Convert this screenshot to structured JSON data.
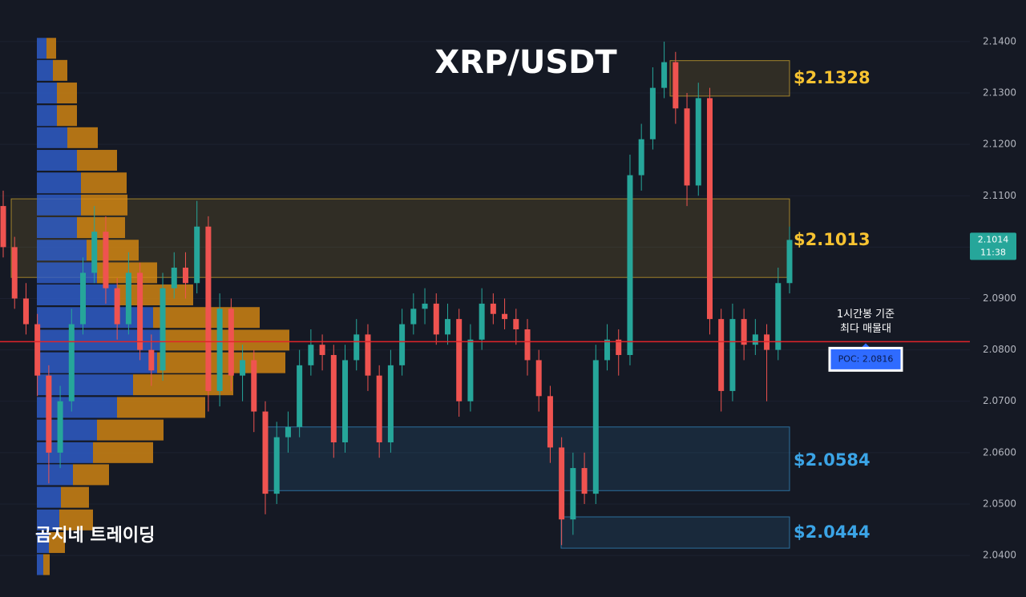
{
  "chart_data": {
    "type": "candlestick",
    "title": "XRP/USDT",
    "watermark": "곰지네 트레이딩",
    "up_color": "#26a69a",
    "down_color": "#ef5350",
    "ylim": [
      2.0319,
      2.1481
    ],
    "yticks": [
      {
        "value": 2.04,
        "label": "2.0400"
      },
      {
        "value": 2.05,
        "label": "2.0500"
      },
      {
        "value": 2.06,
        "label": "2.0600"
      },
      {
        "value": 2.07,
        "label": "2.0700"
      },
      {
        "value": 2.08,
        "label": "2.0800"
      },
      {
        "value": 2.09,
        "label": "2.0900"
      },
      {
        "value": 2.1,
        "label": "2.1000"
      },
      {
        "value": 2.11,
        "label": "2.1100"
      },
      {
        "value": 2.12,
        "label": "2.1200"
      },
      {
        "value": 2.13,
        "label": "2.1300"
      },
      {
        "value": 2.14,
        "label": "2.1400"
      }
    ],
    "ohlc": [
      [
        2.108,
        2.111,
        2.098,
        2.1
      ],
      [
        2.1,
        2.102,
        2.088,
        2.09
      ],
      [
        2.09,
        2.093,
        2.083,
        2.085
      ],
      [
        2.085,
        2.087,
        2.071,
        2.075
      ],
      [
        2.075,
        2.077,
        2.054,
        2.06
      ],
      [
        2.06,
        2.073,
        2.057,
        2.07
      ],
      [
        2.07,
        2.088,
        2.068,
        2.085
      ],
      [
        2.085,
        2.098,
        2.083,
        2.095
      ],
      [
        2.095,
        2.108,
        2.093,
        2.103
      ],
      [
        2.103,
        2.106,
        2.089,
        2.092
      ],
      [
        2.092,
        2.094,
        2.082,
        2.085
      ],
      [
        2.085,
        2.099,
        2.083,
        2.095
      ],
      [
        2.095,
        2.097,
        2.078,
        2.08
      ],
      [
        2.08,
        2.083,
        2.073,
        2.076
      ],
      [
        2.076,
        2.095,
        2.074,
        2.092
      ],
      [
        2.092,
        2.099,
        2.09,
        2.096
      ],
      [
        2.096,
        2.099,
        2.09,
        2.093
      ],
      [
        2.093,
        2.109,
        2.091,
        2.104
      ],
      [
        2.104,
        2.106,
        2.068,
        2.072
      ],
      [
        2.072,
        2.091,
        2.069,
        2.088
      ],
      [
        2.088,
        2.09,
        2.072,
        2.075
      ],
      [
        2.075,
        2.081,
        2.07,
        2.078
      ],
      [
        2.078,
        2.08,
        2.064,
        2.068
      ],
      [
        2.068,
        2.07,
        2.048,
        2.052
      ],
      [
        2.052,
        2.066,
        2.05,
        2.063
      ],
      [
        2.063,
        2.068,
        2.06,
        2.065
      ],
      [
        2.065,
        2.08,
        2.063,
        2.077
      ],
      [
        2.077,
        2.084,
        2.075,
        2.081
      ],
      [
        2.081,
        2.083,
        2.076,
        2.079
      ],
      [
        2.079,
        2.081,
        2.059,
        2.062
      ],
      [
        2.062,
        2.081,
        2.06,
        2.078
      ],
      [
        2.078,
        2.086,
        2.076,
        2.083
      ],
      [
        2.083,
        2.085,
        2.072,
        2.075
      ],
      [
        2.075,
        2.077,
        2.059,
        2.062
      ],
      [
        2.062,
        2.08,
        2.06,
        2.077
      ],
      [
        2.077,
        2.088,
        2.075,
        2.085
      ],
      [
        2.085,
        2.091,
        2.083,
        2.088
      ],
      [
        2.088,
        2.092,
        2.085,
        2.089
      ],
      [
        2.089,
        2.091,
        2.081,
        2.083
      ],
      [
        2.083,
        2.089,
        2.081,
        2.086
      ],
      [
        2.086,
        2.088,
        2.067,
        2.07
      ],
      [
        2.07,
        2.085,
        2.068,
        2.082
      ],
      [
        2.082,
        2.092,
        2.08,
        2.089
      ],
      [
        2.089,
        2.091,
        2.085,
        2.087
      ],
      [
        2.087,
        2.09,
        2.084,
        2.086
      ],
      [
        2.086,
        2.088,
        2.081,
        2.084
      ],
      [
        2.084,
        2.086,
        2.075,
        2.078
      ],
      [
        2.078,
        2.08,
        2.068,
        2.071
      ],
      [
        2.071,
        2.073,
        2.058,
        2.061
      ],
      [
        2.061,
        2.063,
        2.042,
        2.047
      ],
      [
        2.047,
        2.06,
        2.044,
        2.057
      ],
      [
        2.057,
        2.06,
        2.05,
        2.052
      ],
      [
        2.052,
        2.081,
        2.05,
        2.078
      ],
      [
        2.078,
        2.085,
        2.076,
        2.082
      ],
      [
        2.082,
        2.084,
        2.075,
        2.079
      ],
      [
        2.079,
        2.118,
        2.077,
        2.114
      ],
      [
        2.114,
        2.124,
        2.111,
        2.121
      ],
      [
        2.121,
        2.135,
        2.119,
        2.131
      ],
      [
        2.131,
        2.14,
        2.129,
        2.136
      ],
      [
        2.136,
        2.138,
        2.124,
        2.127
      ],
      [
        2.127,
        2.13,
        2.108,
        2.112
      ],
      [
        2.112,
        2.132,
        2.11,
        2.129
      ],
      [
        2.129,
        2.131,
        2.083,
        2.086
      ],
      [
        2.086,
        2.088,
        2.068,
        2.072
      ],
      [
        2.072,
        2.089,
        2.07,
        2.086
      ],
      [
        2.086,
        2.088,
        2.078,
        2.081
      ],
      [
        2.081,
        2.086,
        2.079,
        2.083
      ],
      [
        2.083,
        2.085,
        2.07,
        2.08
      ],
      [
        2.08,
        2.096,
        2.078,
        2.093
      ],
      [
        2.093,
        2.104,
        2.091,
        2.1014
      ]
    ],
    "volume_profile": {
      "buy_color": "#2f5fd0",
      "sell_color": "#d98a12",
      "levels": [
        2.1387,
        2.1344,
        2.13,
        2.1256,
        2.1213,
        2.1169,
        2.1125,
        2.1082,
        2.1038,
        2.0994,
        2.095,
        2.0907,
        2.0863,
        2.0819,
        2.0775,
        2.0732,
        2.0688,
        2.0644,
        2.06,
        2.0557,
        2.0513,
        2.0469,
        2.0425,
        2.0382
      ],
      "buy": [
        12,
        20,
        25,
        25,
        38,
        50,
        55,
        55,
        50,
        62,
        75,
        100,
        145,
        155,
        150,
        120,
        100,
        75,
        70,
        45,
        30,
        28,
        15,
        8
      ],
      "sell": [
        12,
        18,
        25,
        25,
        38,
        50,
        57,
        58,
        60,
        65,
        75,
        95,
        133,
        160,
        160,
        125,
        110,
        83,
        75,
        45,
        35,
        42,
        20,
        8
      ]
    },
    "zones": [
      {
        "price": {
          "value": 2.1328,
          "label": "$2.1328"
        },
        "high": 2.1363,
        "low": 2.1294,
        "color": "#f7c331"
      },
      {
        "price": {
          "value": 2.1013,
          "label": "$2.1013"
        },
        "high": 2.1094,
        "low": 2.0941,
        "color": "#f7c331"
      },
      {
        "price": {
          "value": 2.0584,
          "label": "$2.0584"
        },
        "high": 2.065,
        "low": 2.0526,
        "color": "#3ba4e6"
      },
      {
        "price": {
          "value": 2.0444,
          "label": "$2.0444"
        },
        "high": 2.0475,
        "low": 2.0414,
        "color": "#3ba4e6"
      }
    ],
    "poc": {
      "value": 2.0816,
      "label": "POC: 2.0816",
      "note": [
        "1시간봉 기준",
        "최다 매물대"
      ],
      "color": "#e0242a"
    },
    "last_price": {
      "value": 2.1014,
      "label": "2.1014",
      "time": "11:38"
    }
  }
}
